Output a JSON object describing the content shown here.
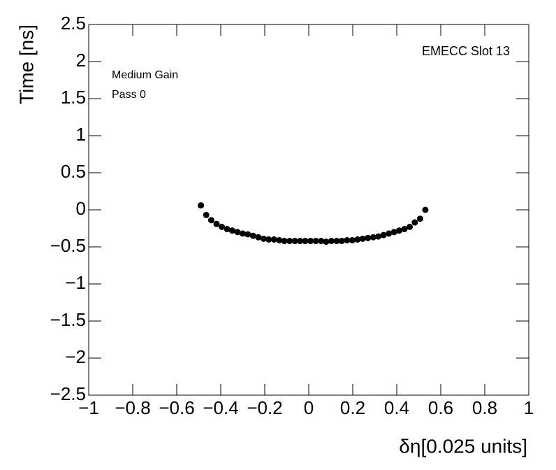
{
  "chart_data": {
    "type": "scatter",
    "x_label": "δη[0.025 units]",
    "y_label": "Time [ns]",
    "annotations": [
      "EMECC Slot 13",
      "Medium Gain",
      "Pass 0"
    ],
    "color": "#000000",
    "x": [
      -0.49,
      -0.466,
      -0.443,
      -0.419,
      -0.395,
      -0.371,
      -0.348,
      -0.324,
      -0.3,
      -0.277,
      -0.253,
      -0.229,
      -0.205,
      -0.182,
      -0.158,
      -0.134,
      -0.111,
      -0.087,
      -0.063,
      -0.039,
      -0.016,
      0.008,
      0.032,
      0.056,
      0.079,
      0.103,
      0.127,
      0.15,
      0.174,
      0.198,
      0.222,
      0.245,
      0.269,
      0.293,
      0.316,
      0.34,
      0.364,
      0.388,
      0.411,
      0.435,
      0.459,
      0.482,
      0.506,
      0.53
    ],
    "values": [
      0.06,
      -0.07,
      -0.14,
      -0.19,
      -0.23,
      -0.26,
      -0.28,
      -0.3,
      -0.32,
      -0.33,
      -0.35,
      -0.37,
      -0.39,
      -0.4,
      -0.4,
      -0.41,
      -0.42,
      -0.42,
      -0.42,
      -0.42,
      -0.42,
      -0.42,
      -0.42,
      -0.42,
      -0.43,
      -0.42,
      -0.42,
      -0.42,
      -0.41,
      -0.41,
      -0.4,
      -0.39,
      -0.38,
      -0.37,
      -0.36,
      -0.34,
      -0.32,
      -0.3,
      -0.28,
      -0.26,
      -0.23,
      -0.17,
      -0.12,
      0.0
    ],
    "xlim": [
      -1,
      1
    ],
    "xticks": [
      {
        "value": -1,
        "label": "−1"
      },
      {
        "value": -0.8,
        "label": "−0.8"
      },
      {
        "value": -0.6,
        "label": "−0.6"
      },
      {
        "value": -0.4,
        "label": "−0.4"
      },
      {
        "value": -0.2,
        "label": "−0.2"
      },
      0,
      0.2,
      0.4,
      0.6,
      0.8,
      1
    ],
    "ylim": [
      -2.5,
      2.5
    ],
    "yticks": [
      {
        "value": -2.5,
        "label": "−2.5"
      },
      {
        "value": -2,
        "label": "−2"
      },
      {
        "value": -1.5,
        "label": "−1.5"
      },
      {
        "value": -1,
        "label": "−1"
      },
      {
        "value": -0.5,
        "label": "−0.5"
      },
      0,
      0.5,
      1,
      1.5,
      2,
      2.5
    ]
  }
}
